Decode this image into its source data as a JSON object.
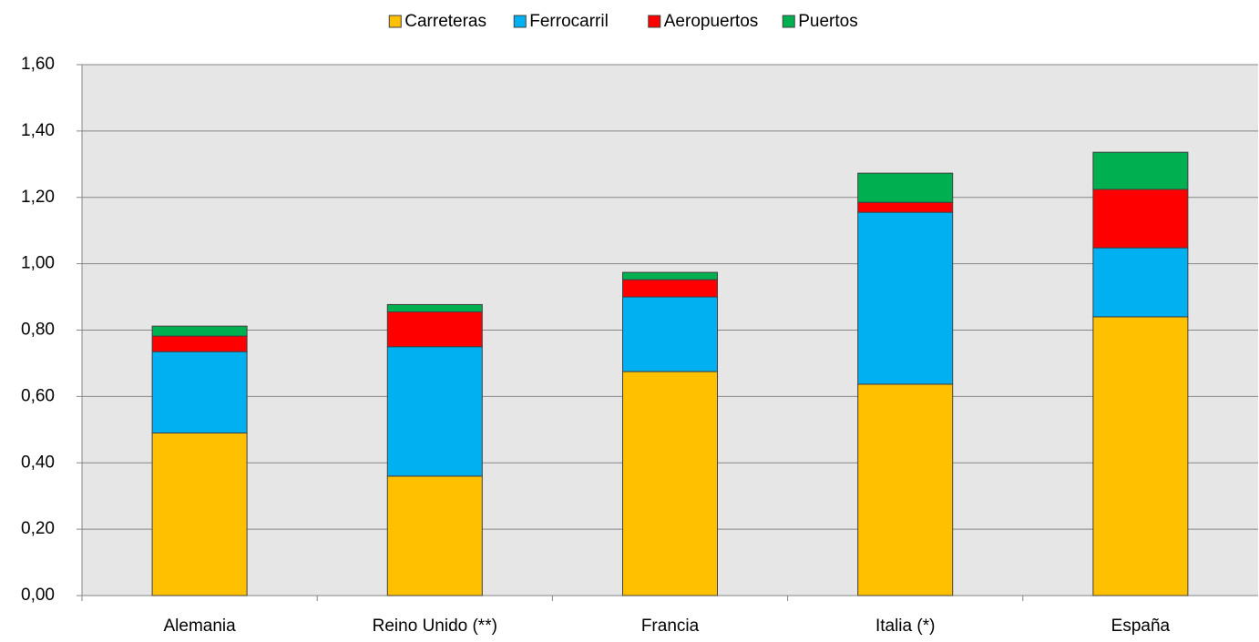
{
  "chart_data": {
    "type": "stacked-bar",
    "categories": [
      "Alemania",
      "Reino Unido (**)",
      "Francia",
      "Italia (*)",
      "España"
    ],
    "series": [
      {
        "name": "Carreteras",
        "color": "#ffc000",
        "values": [
          0.49,
          0.36,
          0.675,
          0.637,
          0.84
        ]
      },
      {
        "name": "Ferrocarril",
        "color": "#00b0f0",
        "values": [
          0.245,
          0.39,
          0.225,
          0.518,
          0.208
        ]
      },
      {
        "name": "Aeropuertos",
        "color": "#ff0000",
        "values": [
          0.047,
          0.105,
          0.052,
          0.03,
          0.176
        ]
      },
      {
        "name": "Puertos",
        "color": "#00b050",
        "values": [
          0.03,
          0.022,
          0.022,
          0.088,
          0.112
        ]
      }
    ],
    "ylim": [
      0,
      1.6
    ],
    "yticks": [
      {
        "value": 0,
        "label": "0,00"
      },
      {
        "value": 0.2,
        "label": "0,20"
      },
      {
        "value": 0.4,
        "label": "0,40"
      },
      {
        "value": 0.6,
        "label": "0,60"
      },
      {
        "value": 0.8,
        "label": "0,80"
      },
      {
        "value": 1.0,
        "label": "1,00"
      },
      {
        "value": 1.2,
        "label": "1,20"
      },
      {
        "value": 1.4,
        "label": "1,40"
      },
      {
        "value": 1.6,
        "label": "1,60"
      }
    ],
    "grid": true,
    "legend": "top"
  }
}
